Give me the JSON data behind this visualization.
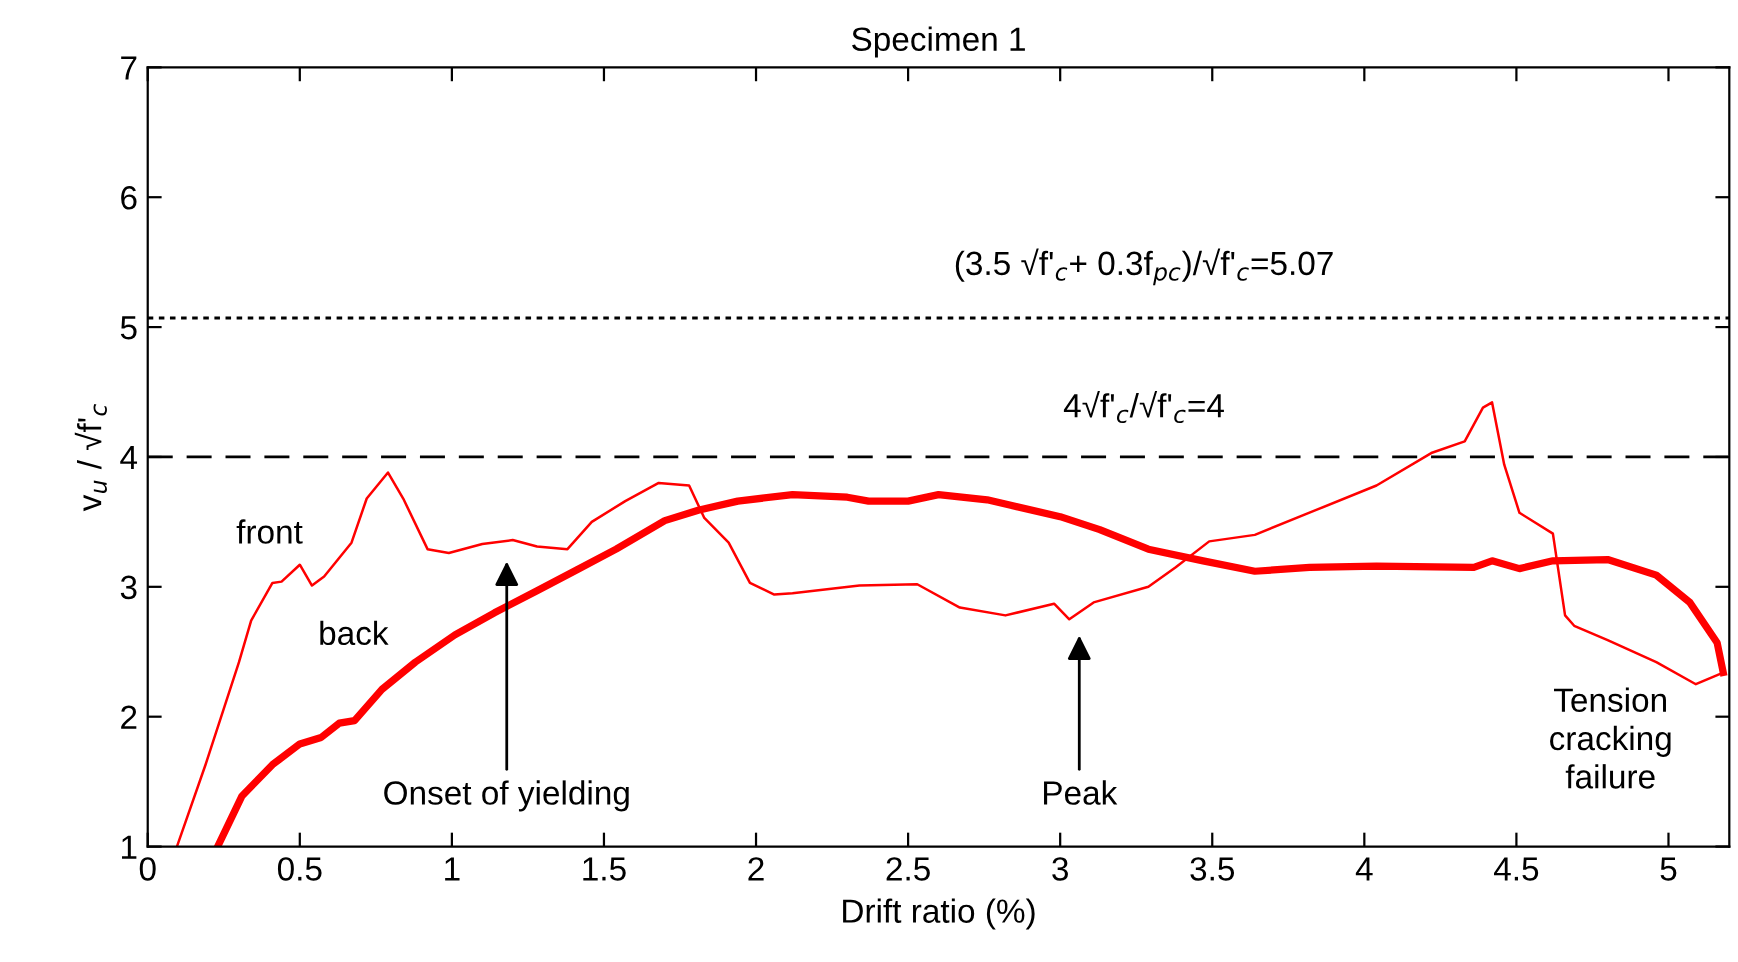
{
  "chart_data": {
    "type": "line",
    "title": "Specimen 1",
    "xlabel": "Drift ratio (%)",
    "ylabel": "v$_{u}$ / √f'$_{c}$",
    "xlim": [
      0,
      5.2
    ],
    "ylim": [
      1,
      7
    ],
    "xticks": [
      0,
      0.5,
      1,
      1.5,
      2,
      2.5,
      3,
      3.5,
      4,
      4.5,
      5
    ],
    "yticks": [
      1,
      2,
      3,
      4,
      5,
      6,
      7
    ],
    "grid": false,
    "legend": false,
    "series": [
      {
        "color": "#ff0000",
        "x": [
          0.096,
          0.19,
          0.3,
          0.34,
          0.41,
          0.44,
          0.5,
          0.54,
          0.58,
          0.67,
          0.72,
          0.79,
          0.84,
          0.92,
          0.99,
          1.1,
          1.2,
          1.28,
          1.38,
          1.46,
          1.57,
          1.68,
          1.78,
          1.83,
          1.91,
          1.98,
          2.06,
          2.12,
          2.34,
          2.53,
          2.67,
          2.82,
          2.98,
          3.03,
          3.11,
          3.29,
          3.38,
          3.49,
          3.64,
          3.84,
          4.04,
          4.22,
          4.33,
          4.39,
          4.42,
          4.46,
          4.51,
          4.62,
          4.66,
          4.69,
          4.8,
          4.96,
          5.09,
          5.18
        ],
        "values": [
          1,
          1.63,
          2.42,
          2.74,
          3.03,
          3.04,
          3.17,
          3.01,
          3.08,
          3.34,
          3.68,
          3.88,
          3.68,
          3.29,
          3.26,
          3.33,
          3.36,
          3.31,
          3.29,
          3.5,
          3.66,
          3.8,
          3.78,
          3.53,
          3.34,
          3.03,
          2.94,
          2.95,
          3.01,
          3.02,
          2.84,
          2.78,
          2.87,
          2.75,
          2.88,
          3.0,
          3.15,
          3.35,
          3.4,
          3.59,
          3.78,
          4.03,
          4.12,
          4.38,
          4.42,
          3.94,
          3.57,
          3.41,
          2.78,
          2.7,
          2.59,
          2.42,
          2.25,
          2.34
        ]
      },
      {
        "color": "#ff0000",
        "x": [
          0.23,
          0.31,
          0.41,
          0.5,
          0.57,
          0.63,
          0.68,
          0.77,
          0.88,
          1.01,
          1.14,
          1.28,
          1.41,
          1.54,
          1.7,
          1.81,
          1.94,
          2.12,
          2.3,
          2.37,
          2.5,
          2.6,
          2.76,
          3.0,
          3.13,
          3.29,
          3.47,
          3.64,
          3.82,
          4.04,
          4.36,
          4.42,
          4.51,
          4.62,
          4.8,
          4.96,
          5.07,
          5.16,
          5.18
        ],
        "values": [
          1,
          1.39,
          1.63,
          1.79,
          1.84,
          1.95,
          1.97,
          2.21,
          2.42,
          2.63,
          2.8,
          2.97,
          3.13,
          3.29,
          3.51,
          3.59,
          3.66,
          3.71,
          3.69,
          3.66,
          3.66,
          3.71,
          3.67,
          3.54,
          3.44,
          3.29,
          3.2,
          3.12,
          3.15,
          3.16,
          3.15,
          3.2,
          3.14,
          3.2,
          3.21,
          3.09,
          2.88,
          2.57,
          2.34
        ]
      }
    ],
    "ref_lines": [
      {
        "axis": "y",
        "value": 5.07,
        "label": "(3.5 √f'$_{c}$+ 0.3f$_{pc}$)/√f'$_{c}$=5.07",
        "color": "#000000",
        "line_style": "dotted"
      },
      {
        "axis": "y",
        "value": 4,
        "label": "4√f'$_{c}$/√f'$_{c}$=4",
        "color": "#000000",
        "line_style": "dashed"
      }
    ],
    "annotations": [
      "front",
      "back",
      "Onset of yielding",
      "Peak",
      "Tension\ncracking\nfailure"
    ]
  }
}
